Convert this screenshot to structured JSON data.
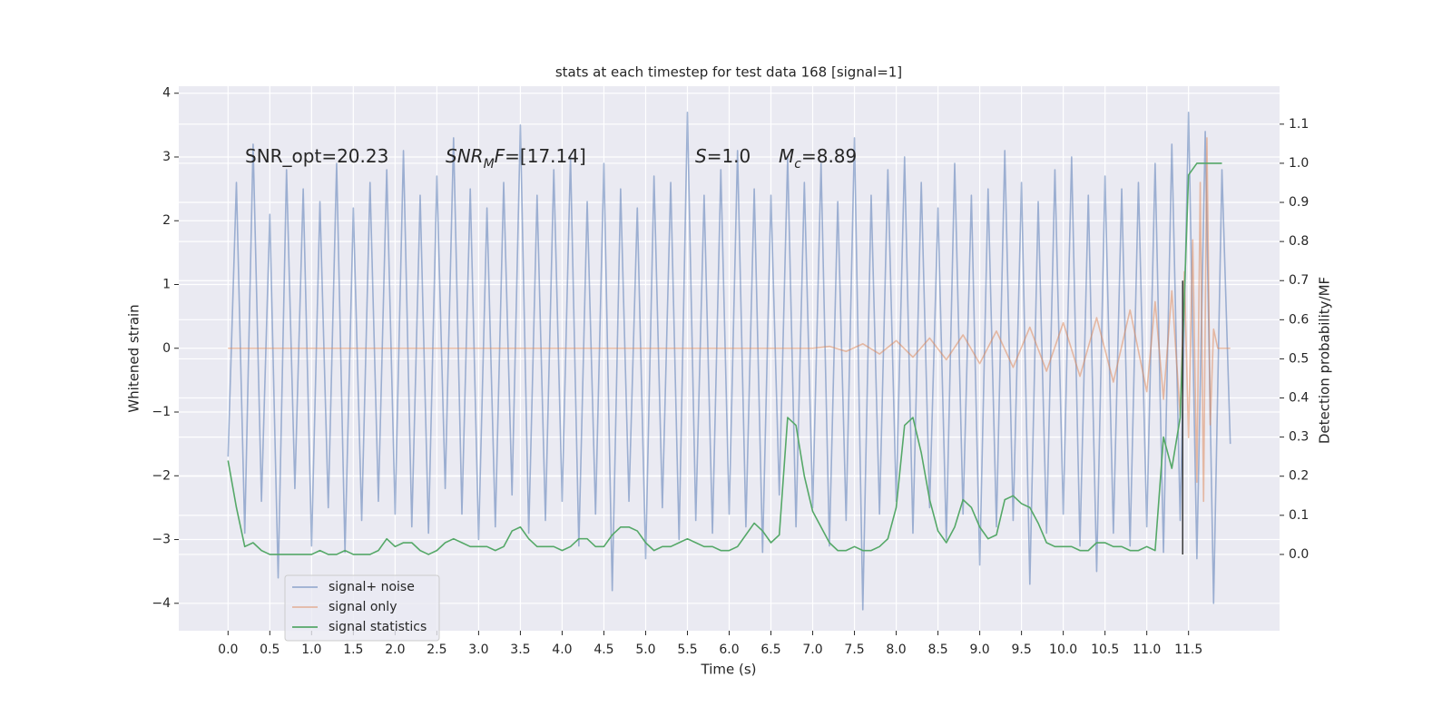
{
  "chart_data": {
    "type": "line",
    "title": "stats at each timestep for test data 168 [signal=1]",
    "x_label": "Time (s)",
    "y_label": "Whitened strain",
    "y2_label": "Detection probability/MF",
    "xlim": [
      -0.59,
      12.59
    ],
    "ylim": [
      -4.43,
      4.11
    ],
    "y2lim": [
      -0.195,
      1.197
    ],
    "xticks": [
      {
        "value": 0,
        "label": "0.0"
      },
      0.5,
      {
        "value": 1,
        "label": "1.0"
      },
      1.5,
      {
        "value": 2,
        "label": "2.0"
      },
      2.5,
      {
        "value": 3,
        "label": "3.0"
      },
      3.5,
      {
        "value": 4,
        "label": "4.0"
      },
      4.5,
      {
        "value": 5,
        "label": "5.0"
      },
      5.5,
      {
        "value": 6,
        "label": "6.0"
      },
      6.5,
      {
        "value": 7,
        "label": "7.0"
      },
      7.5,
      {
        "value": 8,
        "label": "8.0"
      },
      8.5,
      {
        "value": 9,
        "label": "9.0"
      },
      9.5,
      {
        "value": 10,
        "label": "10.0"
      },
      10.5,
      {
        "value": 11,
        "label": "11.0"
      },
      11.5
    ],
    "yticks": [
      {
        "value": -4,
        "label": "−4"
      },
      {
        "value": -3,
        "label": "−3"
      },
      {
        "value": -2,
        "label": "−2"
      },
      {
        "value": -1,
        "label": "−1"
      },
      0,
      1,
      2,
      3,
      4
    ],
    "y2ticks": [
      {
        "value": 0,
        "label": "0.0"
      },
      0.1,
      0.2,
      0.3,
      0.4,
      0.5,
      0.6,
      0.7,
      0.8,
      0.9,
      {
        "value": 1,
        "label": "1.0"
      },
      1.1
    ],
    "grid": true,
    "legend": "lower left",
    "series": [
      {
        "name": "signal+ noise",
        "color": "#4c72b0",
        "alpha": 0.5,
        "x": [
          0,
          0.1,
          0.2,
          0.3,
          0.4,
          0.5,
          0.6,
          0.7,
          0.8,
          0.9,
          1,
          1.1,
          1.2,
          1.3,
          1.4,
          1.5,
          1.6,
          1.7,
          1.8,
          1.9,
          2,
          2.1,
          2.2,
          2.3,
          2.4,
          2.5,
          2.6,
          2.7,
          2.8,
          2.9,
          3,
          3.1,
          3.2,
          3.3,
          3.4,
          3.5,
          3.6,
          3.7,
          3.8,
          3.9,
          4,
          4.1,
          4.2,
          4.3,
          4.4,
          4.5,
          4.6,
          4.7,
          4.8,
          4.9,
          5,
          5.1,
          5.2,
          5.3,
          5.4,
          5.5,
          5.6,
          5.7,
          5.8,
          5.9,
          6,
          6.1,
          6.2,
          6.3,
          6.4,
          6.5,
          6.6,
          6.7,
          6.8,
          6.9,
          7,
          7.1,
          7.2,
          7.3,
          7.4,
          7.5,
          7.6,
          7.7,
          7.8,
          7.9,
          8,
          8.1,
          8.2,
          8.3,
          8.4,
          8.5,
          8.6,
          8.7,
          8.8,
          8.9,
          9,
          9.1,
          9.2,
          9.3,
          9.4,
          9.5,
          9.6,
          9.7,
          9.8,
          9.9,
          10,
          10.1,
          10.2,
          10.3,
          10.4,
          10.5,
          10.6,
          10.7,
          10.8,
          10.9,
          11,
          11.1,
          11.2,
          11.3,
          11.4,
          11.5,
          11.6,
          11.7,
          11.8,
          11.9,
          12
        ],
        "values": [
          -1.7,
          2.6,
          -2.9,
          3.2,
          -2.4,
          2.1,
          -3.6,
          2.8,
          -2.2,
          2.5,
          -3.1,
          2.3,
          -2.5,
          2.9,
          -3.2,
          2.2,
          -2.7,
          2.6,
          -2.4,
          2.8,
          -2.6,
          3.1,
          -2.8,
          2.4,
          -2.9,
          2.7,
          -2.2,
          3.3,
          -2.6,
          2.5,
          -3.0,
          2.2,
          -2.8,
          2.6,
          -2.3,
          3.5,
          -2.9,
          2.4,
          -2.7,
          2.8,
          -2.4,
          3.0,
          -3.1,
          2.3,
          -2.6,
          2.9,
          -3.8,
          2.5,
          -2.4,
          2.2,
          -3.3,
          2.7,
          -2.5,
          2.6,
          -3.0,
          3.7,
          -2.7,
          2.4,
          -2.9,
          2.8,
          -2.6,
          3.1,
          -2.8,
          2.5,
          -3.2,
          2.4,
          -2.3,
          3.0,
          -2.8,
          2.6,
          -2.5,
          2.9,
          -3.1,
          2.3,
          -2.7,
          3.3,
          -4.1,
          2.4,
          -2.6,
          2.8,
          -2.4,
          3.0,
          -2.9,
          2.6,
          -2.5,
          2.2,
          -3.0,
          2.9,
          -2.6,
          2.4,
          -3.4,
          2.5,
          -2.8,
          3.1,
          -2.7,
          2.6,
          -3.7,
          2.3,
          -2.9,
          2.8,
          -2.6,
          3.0,
          -3.1,
          2.4,
          -3.5,
          2.7,
          -2.9,
          2.5,
          -3.1,
          2.6,
          -2.8,
          2.9,
          -3.2,
          3.2,
          -2.7,
          3.7,
          -3.3,
          3.4,
          -4.0,
          2.8,
          -1.5
        ]
      },
      {
        "name": "signal only",
        "color": "#dd8452",
        "alpha": 0.5,
        "x": [
          0,
          7,
          7.2,
          7.4,
          7.6,
          7.8,
          8,
          8.2,
          8.4,
          8.6,
          8.8,
          9,
          9.2,
          9.4,
          9.6,
          9.8,
          10,
          10.2,
          10.4,
          10.6,
          10.8,
          11,
          11.1,
          11.2,
          11.3,
          11.4,
          11.45,
          11.5,
          11.55,
          11.6,
          11.64,
          11.68,
          11.72,
          11.76,
          11.8,
          11.85,
          12
        ],
        "values": [
          0,
          0,
          0.03,
          -0.05,
          0.07,
          -0.09,
          0.12,
          -0.14,
          0.16,
          -0.18,
          0.21,
          -0.24,
          0.27,
          -0.3,
          0.33,
          -0.36,
          0.4,
          -0.44,
          0.48,
          -0.53,
          0.6,
          -0.68,
          0.73,
          -0.8,
          0.9,
          -1.05,
          1.2,
          -1.4,
          1.7,
          -2.1,
          2.6,
          -2.4,
          3.3,
          -1.2,
          0.3,
          0,
          0
        ]
      },
      {
        "name": "signal statistics",
        "color": "#55a868",
        "alpha": 1,
        "axis": "y2",
        "x": [
          0,
          0.1,
          0.2,
          0.3,
          0.4,
          0.5,
          0.6,
          0.7,
          0.8,
          0.9,
          1,
          1.1,
          1.2,
          1.3,
          1.4,
          1.5,
          1.6,
          1.7,
          1.8,
          1.9,
          2,
          2.1,
          2.2,
          2.3,
          2.4,
          2.5,
          2.6,
          2.7,
          2.8,
          2.9,
          3,
          3.1,
          3.2,
          3.3,
          3.4,
          3.5,
          3.6,
          3.7,
          3.8,
          3.9,
          4,
          4.1,
          4.2,
          4.3,
          4.4,
          4.5,
          4.6,
          4.7,
          4.8,
          4.9,
          5,
          5.1,
          5.2,
          5.3,
          5.4,
          5.5,
          5.6,
          5.7,
          5.8,
          5.9,
          6,
          6.1,
          6.2,
          6.3,
          6.4,
          6.5,
          6.6,
          6.7,
          6.8,
          6.9,
          7,
          7.1,
          7.2,
          7.3,
          7.4,
          7.5,
          7.6,
          7.7,
          7.8,
          7.9,
          8,
          8.1,
          8.2,
          8.3,
          8.4,
          8.5,
          8.6,
          8.7,
          8.8,
          8.9,
          9,
          9.1,
          9.2,
          9.3,
          9.4,
          9.5,
          9.6,
          9.7,
          9.8,
          9.9,
          10,
          10.1,
          10.2,
          10.3,
          10.4,
          10.5,
          10.6,
          10.7,
          10.8,
          10.9,
          11,
          11.1,
          11.2,
          11.3,
          11.4,
          11.5,
          11.6,
          11.7,
          11.8,
          11.9
        ],
        "values": [
          0.24,
          0.12,
          0.02,
          0.03,
          0.01,
          0,
          0,
          0,
          0,
          0,
          0,
          0.01,
          0,
          0,
          0.01,
          0,
          0,
          0,
          0.01,
          0.04,
          0.02,
          0.03,
          0.03,
          0.01,
          0,
          0.01,
          0.03,
          0.04,
          0.03,
          0.02,
          0.02,
          0.02,
          0.01,
          0.02,
          0.06,
          0.07,
          0.04,
          0.02,
          0.02,
          0.02,
          0.01,
          0.02,
          0.04,
          0.04,
          0.02,
          0.02,
          0.05,
          0.07,
          0.07,
          0.06,
          0.03,
          0.01,
          0.02,
          0.02,
          0.03,
          0.04,
          0.03,
          0.02,
          0.02,
          0.01,
          0.01,
          0.02,
          0.05,
          0.08,
          0.06,
          0.03,
          0.05,
          0.35,
          0.33,
          0.2,
          0.11,
          0.07,
          0.03,
          0.01,
          0.01,
          0.02,
          0.01,
          0.01,
          0.02,
          0.04,
          0.12,
          0.33,
          0.35,
          0.26,
          0.14,
          0.06,
          0.03,
          0.07,
          0.14,
          0.12,
          0.07,
          0.04,
          0.05,
          0.14,
          0.15,
          0.13,
          0.12,
          0.08,
          0.03,
          0.02,
          0.02,
          0.02,
          0.01,
          0.01,
          0.03,
          0.03,
          0.02,
          0.02,
          0.01,
          0.01,
          0.02,
          0.01,
          0.3,
          0.22,
          0.35,
          0.97,
          1,
          1,
          1,
          1
        ]
      }
    ],
    "marker_line": {
      "color": "#3a3a3a",
      "x": 11.43,
      "y2": [
        0,
        0.7
      ]
    },
    "annotations": [
      {
        "parts": [
          {
            "text": "SNR_opt=20.23"
          }
        ]
      },
      {
        "parts": [
          {
            "text": "SNR",
            "italic": true
          },
          {
            "text": "M",
            "italic": true,
            "sub": true
          },
          {
            "text": "F",
            "italic": true
          },
          {
            "text": "=[17.14]"
          }
        ]
      },
      {
        "parts": [
          {
            "text": "S",
            "italic": true
          },
          {
            "text": "=1.0"
          }
        ]
      },
      {
        "parts": [
          {
            "text": "M",
            "italic": true
          },
          {
            "text": "c",
            "italic": true,
            "sub": true
          },
          {
            "text": "=8.89"
          }
        ]
      }
    ]
  }
}
